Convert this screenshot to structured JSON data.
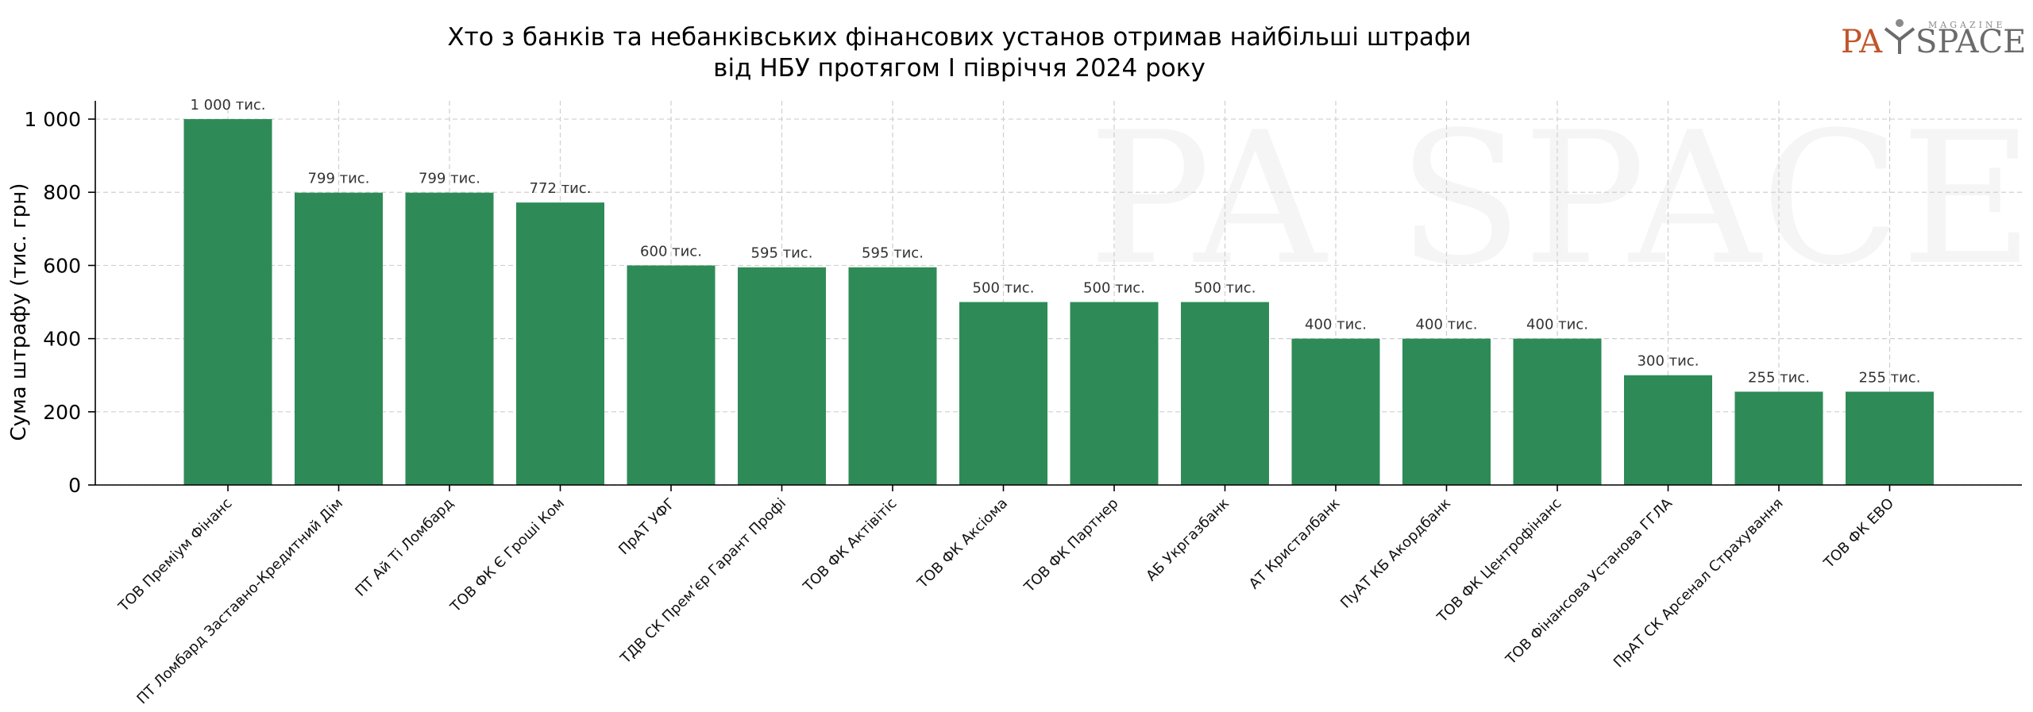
{
  "logo": {
    "part1": "PA",
    "part2": "SPACE",
    "sub": "MAGAZINE",
    "color1": "#c0552b",
    "color2": "#6b6b6b"
  },
  "chart_data": {
    "type": "bar",
    "title_lines": [
      "Хто з банків та небанківських фінансових установ отримав найбільші штрафи",
      "від НБУ протягом І півріччя 2024 року"
    ],
    "xlabel": "",
    "ylabel": "Сума штрафу (тис. грн)",
    "ylim": [
      0,
      1050
    ],
    "yticks": [
      0,
      200,
      400,
      600,
      800,
      1000
    ],
    "ytick_labels": [
      "0",
      "200",
      "400",
      "600",
      "800",
      "1 000"
    ],
    "grid": true,
    "bar_color": "#2e8b57",
    "categories": [
      "ТОВ Преміум Фінанс",
      "ПТ Ломбард Заставно-Кредитний Дім",
      "ПТ Ай Ті Ломбард",
      "ТОВ ФК Є Гроші Ком",
      "ПрАТ УФГ",
      "ТДВ СК Прем’єр Гарант Профі",
      "ТОВ ФК Актівітіс",
      "ТОВ ФК Аксіома",
      "ТОВ ФК Партнер",
      "АБ Укргазбанк",
      "АТ Кристалбанк",
      "ПуАТ КБ Акордбанк",
      "ТОВ ФК Центрофінанс",
      "ТОВ Фінансова Установа ГГЛА",
      "ПрАТ СК Арсенал Страхування",
      "ТОВ ФК ЕВО"
    ],
    "values": [
      1000,
      799,
      799,
      772,
      600,
      595,
      595,
      500,
      500,
      500,
      400,
      400,
      400,
      300,
      255,
      255
    ],
    "value_labels": [
      "1 000 тис.",
      "799 тис.",
      "799 тис.",
      "772 тис.",
      "600 тис.",
      "595 тис.",
      "595 тис.",
      "500 тис.",
      "500 тис.",
      "500 тис.",
      "400 тис.",
      "400 тис.",
      "400 тис.",
      "300 тис.",
      "255 тис.",
      "255 тис."
    ]
  }
}
